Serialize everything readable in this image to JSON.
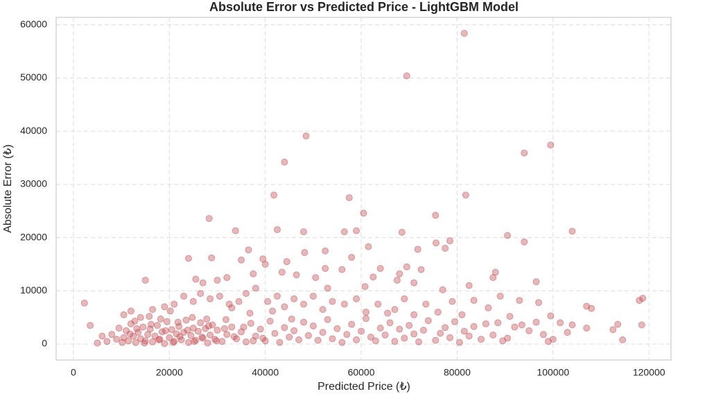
{
  "chart_data": {
    "type": "scatter",
    "title": "Absolute Error vs Predicted Price - LightGBM Model",
    "xlabel": "Predicted Price (₺)",
    "ylabel": "Absolute Error (₺)",
    "color": "#c44e52",
    "grid": true,
    "xlim": [
      -3600,
      124600
    ],
    "ylim": [
      -3000,
      61400
    ],
    "xticks": [
      0,
      20000,
      40000,
      60000,
      80000,
      100000,
      120000
    ],
    "yticks": [
      0,
      10000,
      20000,
      30000,
      40000,
      50000,
      60000
    ],
    "x": [
      81500,
      69500,
      48500,
      44000,
      41800,
      57500,
      81800,
      99500,
      94000,
      28300,
      60500,
      75500,
      90500,
      94000,
      104000,
      33800,
      42500,
      48000,
      56500,
      59000,
      68500,
      36500,
      48200,
      52500,
      58000,
      61500,
      71800,
      75600,
      78500,
      77500,
      24000,
      28800,
      39500,
      44500,
      35000,
      40000,
      15000,
      25500,
      27000,
      30000,
      32000,
      37500,
      43500,
      46500,
      50500,
      52500,
      56000,
      62500,
      64000,
      68000,
      69500,
      72500,
      88000,
      87500,
      96500,
      82500,
      77000,
      53000,
      60800,
      71000,
      67500,
      10500,
      12000,
      14000,
      16500,
      19000,
      21000,
      23000,
      25000,
      26500,
      28500,
      30500,
      32500,
      34500,
      36000,
      38000,
      40500,
      42500,
      44000,
      46000,
      48000,
      50000,
      52000,
      54000,
      56500,
      59000,
      61000,
      63500,
      65500,
      67000,
      69000,
      71000,
      73500,
      76000,
      79000,
      81000,
      83500,
      86500,
      89000,
      91000,
      93000,
      97000,
      99500,
      107000,
      108000,
      118000,
      118700,
      2300,
      5000,
      6000,
      7000,
      8000,
      9000,
      9500,
      10500,
      11000,
      11500,
      12000,
      12500,
      13000,
      13500,
      14000,
      14500,
      15000,
      15500,
      16000,
      16500,
      17000,
      17500,
      18000,
      18500,
      19000,
      19500,
      20000,
      20500,
      21000,
      21500,
      22000,
      22500,
      23000,
      23500,
      24000,
      24500,
      25000,
      25500,
      26000,
      26500,
      27000,
      27500,
      28000,
      28500,
      29000,
      29500,
      30000,
      31000,
      32000,
      33000,
      34000,
      35000,
      36000,
      37000,
      38000,
      39000,
      40000,
      41000,
      42000,
      43000,
      44000,
      45000,
      46000,
      47000,
      48000,
      49000,
      50000,
      51000,
      52000,
      53000,
      54000,
      55000,
      56000,
      57000,
      58000,
      59000,
      60000,
      61000,
      62000,
      63000,
      64000,
      65000,
      66000,
      67000,
      68000,
      69000,
      70000,
      71000,
      72000,
      73000,
      74000,
      75500,
      76500,
      77500,
      78500,
      79500,
      80500,
      81500,
      82500,
      83500,
      85000,
      86000,
      87500,
      88500,
      89500,
      90500,
      92000,
      93500,
      95000,
      96500,
      98000,
      99000,
      100000,
      101500,
      103000,
      104000,
      107000,
      112500,
      113500,
      114500,
      118500,
      3500,
      10200,
      11800,
      13200,
      14800,
      16200,
      17800,
      19200,
      20800,
      22200,
      23800,
      25200,
      26800,
      28200,
      29800,
      31500,
      33500,
      35500,
      37500,
      39500,
      12800,
      18200,
      21800,
      24800,
      27800,
      31800,
      15800,
      20200,
      33000,
      36800,
      41500,
      45500
    ],
    "values": [
      58400,
      50400,
      39100,
      34200,
      28000,
      27500,
      28000,
      37400,
      35900,
      23600,
      24600,
      24200,
      20400,
      19200,
      21200,
      21300,
      21500,
      21100,
      21100,
      21300,
      21000,
      17700,
      17200,
      17500,
      16300,
      18300,
      17800,
      19000,
      19400,
      18000,
      16100,
      16200,
      16000,
      15500,
      15800,
      15000,
      12000,
      12200,
      11500,
      12000,
      12500,
      13200,
      13500,
      13000,
      12500,
      14200,
      14000,
      12600,
      14200,
      13200,
      14500,
      14000,
      13500,
      12500,
      11700,
      11000,
      10200,
      10500,
      10800,
      11500,
      12000,
      5500,
      6200,
      5000,
      6500,
      7000,
      7500,
      9000,
      8000,
      9500,
      8500,
      9000,
      7500,
      8000,
      9500,
      10500,
      8000,
      9000,
      7000,
      8500,
      7500,
      9000,
      6500,
      8000,
      7500,
      8500,
      6000,
      7500,
      5800,
      6500,
      8500,
      5500,
      7500,
      6000,
      8000,
      5500,
      8200,
      6800,
      9000,
      5200,
      8200,
      7800,
      5300,
      7100,
      6700,
      8200,
      8600,
      7700,
      200,
      1500,
      500,
      1800,
      900,
      3000,
      1200,
      2500,
      600,
      3800,
      1500,
      300,
      2200,
      1000,
      3200,
      600,
      1800,
      2800,
      400,
      1500,
      3500,
      900,
      2300,
      100,
      4200,
      1200,
      2700,
      500,
      1900,
      3300,
      800,
      2200,
      4500,
      300,
      1600,
      3000,
      700,
      2400,
      4000,
      1100,
      2900,
      200,
      1700,
      3600,
      900,
      2600,
      500,
      1800,
      3200,
      1000,
      2300,
      400,
      3900,
      1500,
      2800,
      600,
      4300,
      2000,
      300,
      3100,
      1300,
      2500,
      800,
      4100,
      1600,
      3400,
      700,
      2200,
      4600,
      1000,
      2900,
      300,
      1800,
      3700,
      800,
      2400,
      4800,
      1300,
      600,
      3000,
      1700,
      4000,
      500,
      2800,
      1100,
      3500,
      1900,
      400,
      2600,
      4400,
      700,
      2000,
      3100,
      1200,
      4200,
      300,
      2400,
      1500,
      3300,
      900,
      3800,
      1700,
      4000,
      600,
      1100,
      3200,
      3600,
      2500,
      4100,
      1800,
      500,
      900,
      4000,
      2200,
      3600,
      3000,
      2700,
      3700,
      800,
      3600,
      3500,
      300,
      1900,
      2900,
      200,
      3700,
      800,
      2500,
      300,
      1400,
      2600,
      500,
      1300,
      3400,
      600,
      2900,
      1400,
      3200,
      600,
      1100,
      4300,
      4700,
      4100,
      5000,
      4700,
      4600,
      5200,
      6200,
      6800,
      5800,
      6200,
      4700
    ]
  }
}
